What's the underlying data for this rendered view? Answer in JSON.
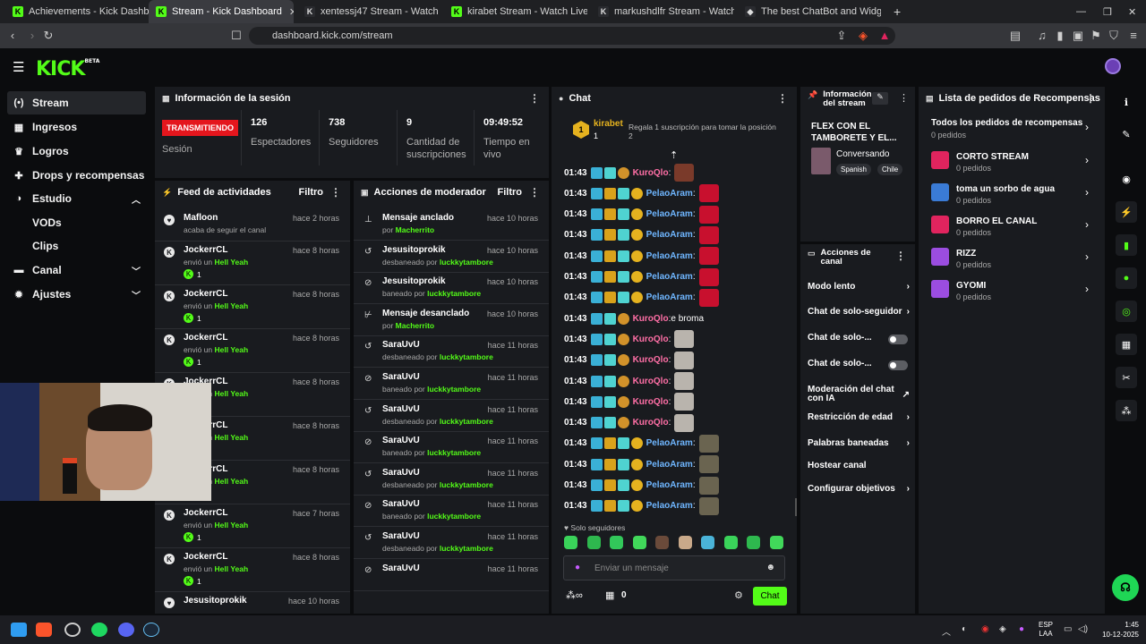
{
  "browser": {
    "tabs": [
      {
        "title": "Achievements - Kick Dashboard",
        "icon": "kick-icon"
      },
      {
        "title": "Stream - Kick Dashboard",
        "icon": "kick-icon"
      },
      {
        "title": "xentessj47 Stream - Watch Live o",
        "icon": "mute-icon"
      },
      {
        "title": "kirabet Stream - Watch Live on Ki",
        "icon": "kick-icon"
      },
      {
        "title": "markushdlfr Stream - Watch Live",
        "icon": "mute-icon"
      },
      {
        "title": "The best ChatBot and Widgets for Ki",
        "icon": "bot-icon"
      }
    ],
    "url": "dashboard.kick.com/stream",
    "shield_count": "9"
  },
  "brand": {
    "logo": "KICK",
    "beta": "BETA"
  },
  "sidebar": {
    "items": [
      {
        "label": "Stream",
        "icon": "stream-icon"
      },
      {
        "label": "Ingresos",
        "icon": "ingresos-icon"
      },
      {
        "label": "Logros",
        "icon": "trophy-icon"
      },
      {
        "label": "Drops y recompensas",
        "icon": "gift-icon"
      },
      {
        "label": "Estudio",
        "icon": "studio-icon",
        "chevron": "up"
      },
      {
        "label": "VODs"
      },
      {
        "label": "Clips"
      },
      {
        "label": "Canal",
        "icon": "channel-icon",
        "chevron": "down"
      },
      {
        "label": "Ajustes",
        "icon": "gear-icon",
        "chevron": "down"
      }
    ]
  },
  "session": {
    "title": "Información de la sesión",
    "badge": "TRANSMITIENDO",
    "badge_label": "Sesión",
    "stats": [
      {
        "value": "126",
        "label": "Espectadores"
      },
      {
        "value": "738",
        "label": "Seguidores"
      },
      {
        "value": "9",
        "label": "Cantidad de suscripciones"
      },
      {
        "value": "09:49:52",
        "label": "Tiempo en vivo"
      }
    ]
  },
  "feed": {
    "title": "Feed de actividades",
    "filter": "Filtro",
    "items": [
      {
        "name": "Mafloon",
        "time": "hace 2 horas",
        "sub": "acaba de seguir el canal",
        "type": "follow"
      },
      {
        "name": "JockerrCL",
        "time": "hace 8 horas",
        "sent": "envió un",
        "gift": "Hell Yeah",
        "count": "1",
        "type": "kick"
      },
      {
        "name": "JockerrCL",
        "time": "hace 8 horas",
        "sent": "envió un",
        "gift": "Hell Yeah",
        "count": "1",
        "type": "kick"
      },
      {
        "name": "JockerrCL",
        "time": "hace 8 horas",
        "sent": "envió un",
        "gift": "Hell Yeah",
        "count": "1",
        "type": "kick"
      },
      {
        "name": "JockerrCL",
        "time": "hace 8 horas",
        "sent": "envió un",
        "gift": "Hell Yeah",
        "count": "1",
        "type": "kick"
      },
      {
        "name": "JockerrCL",
        "time": "hace 8 horas",
        "sent": "envió un",
        "gift": "Hell Yeah",
        "count": "1",
        "type": "kick"
      },
      {
        "name": "JockerrCL",
        "time": "hace 8 horas",
        "sent": "envió un",
        "gift": "Hell Yeah",
        "count": "1",
        "type": "kick"
      },
      {
        "name": "JockerrCL",
        "time": "hace 7 horas",
        "sent": "envió un",
        "gift": "Hell Yeah",
        "count": "1",
        "type": "kick"
      },
      {
        "name": "JockerrCL",
        "time": "hace 8 horas",
        "sent": "envió un",
        "gift": "Hell Yeah",
        "count": "1",
        "type": "kick"
      },
      {
        "name": "Jesusitoprokik",
        "time": "hace 10 horas",
        "type": "follow"
      }
    ]
  },
  "mod": {
    "title": "Acciones de moderador",
    "filter": "Filtro",
    "items": [
      {
        "action": "Mensaje anclado",
        "time": "hace 10 horas",
        "pre": "por",
        "by": "Macherrito",
        "icon": "pin-icon"
      },
      {
        "action": "Jesusitoprokik",
        "time": "hace 10 horas",
        "pre": "desbaneado por",
        "by": "luckkytambore",
        "icon": "unban-icon"
      },
      {
        "action": "Jesusitoprokik",
        "time": "hace 10 horas",
        "pre": "baneado por",
        "by": "luckkytambore",
        "icon": "ban-icon"
      },
      {
        "action": "Mensaje desanclado",
        "time": "hace 10 horas",
        "pre": "por",
        "by": "Macherrito",
        "icon": "unpin-icon"
      },
      {
        "action": "SaraUvU",
        "time": "hace 11 horas",
        "pre": "desbaneado por",
        "by": "luckkytambore",
        "icon": "unban-icon"
      },
      {
        "action": "SaraUvU",
        "time": "hace 11 horas",
        "pre": "baneado por",
        "by": "luckkytambore",
        "icon": "ban-icon"
      },
      {
        "action": "SaraUvU",
        "time": "hace 11 horas",
        "pre": "desbaneado por",
        "by": "luckkytambore",
        "icon": "unban-icon"
      },
      {
        "action": "SaraUvU",
        "time": "hace 11 horas",
        "pre": "baneado por",
        "by": "luckkytambore",
        "icon": "ban-icon"
      },
      {
        "action": "SaraUvU",
        "time": "hace 11 horas",
        "pre": "desbaneado por",
        "by": "luckkytambore",
        "icon": "unban-icon"
      },
      {
        "action": "SaraUvU",
        "time": "hace 11 horas",
        "pre": "baneado por",
        "by": "luckkytambore",
        "icon": "ban-icon"
      },
      {
        "action": "SaraUvU",
        "time": "hace 11 horas",
        "pre": "desbaneado por",
        "by": "luckkytambore",
        "icon": "unban-icon"
      },
      {
        "action": "SaraUvU",
        "time": "hace 11 horas",
        "pre": "",
        "by": "",
        "icon": "ban-icon"
      }
    ]
  },
  "chat": {
    "title": "Chat",
    "pinned": {
      "user": "kirabet",
      "badge": "1",
      "text": "Regala 1 suscripción para tomar la posición 2"
    },
    "messages": [
      {
        "time": "01:43",
        "user": "KuroQlo",
        "color": "#ff6fa6",
        "text": "",
        "emote": "#7a3a2a"
      },
      {
        "time": "01:43",
        "user": "PelaoAram",
        "color": "#6fb6ff",
        "text": "",
        "emote": "#c8102e"
      },
      {
        "time": "01:43",
        "user": "PelaoAram",
        "color": "#6fb6ff",
        "text": "",
        "emote": "#c8102e"
      },
      {
        "time": "01:43",
        "user": "PelaoAram",
        "color": "#6fb6ff",
        "text": "",
        "emote": "#c8102e"
      },
      {
        "time": "01:43",
        "user": "PelaoAram",
        "color": "#6fb6ff",
        "text": "",
        "emote": "#c8102e"
      },
      {
        "time": "01:43",
        "user": "PelaoAram",
        "color": "#6fb6ff",
        "text": "",
        "emote": "#c8102e"
      },
      {
        "time": "01:43",
        "user": "PelaoAram",
        "color": "#6fb6ff",
        "text": "",
        "emote": "#c8102e"
      },
      {
        "time": "01:43",
        "user": "KuroQlo",
        "color": "#ff6fa6",
        "text": " e broma",
        "emote": ""
      },
      {
        "time": "01:43",
        "user": "KuroQlo",
        "color": "#ff6fa6",
        "text": "",
        "emote": "#b9b4ad"
      },
      {
        "time": "01:43",
        "user": "KuroQlo",
        "color": "#ff6fa6",
        "text": "",
        "emote": "#b9b4ad"
      },
      {
        "time": "01:43",
        "user": "KuroQlo",
        "color": "#ff6fa6",
        "text": "",
        "emote": "#b9b4ad"
      },
      {
        "time": "01:43",
        "user": "KuroQlo",
        "color": "#ff6fa6",
        "text": "",
        "emote": "#b9b4ad"
      },
      {
        "time": "01:43",
        "user": "KuroQlo",
        "color": "#ff6fa6",
        "text": "",
        "emote": "#b9b4ad"
      },
      {
        "time": "01:43",
        "user": "PelaoAram",
        "color": "#6fb6ff",
        "text": "",
        "emote": "#6a6450"
      },
      {
        "time": "01:43",
        "user": "PelaoAram",
        "color": "#6fb6ff",
        "text": "",
        "emote": "#6a6450"
      },
      {
        "time": "01:43",
        "user": "PelaoAram",
        "color": "#6fb6ff",
        "text": "",
        "emote": "#6a6450"
      },
      {
        "time": "01:43",
        "user": "PelaoAram",
        "color": "#6fb6ff",
        "text": "",
        "emote": "#6a6450"
      }
    ],
    "followers_only": "Solo seguidores",
    "placeholder": "Enviar un mensaje",
    "points": "0",
    "send": "Chat"
  },
  "stream_info": {
    "title": "Información del stream",
    "stream_title": "FLEX CON EL TAMBORETE Y EL...",
    "category": "Conversando",
    "tags": [
      "Spanish",
      "Chile"
    ]
  },
  "channel_actions": {
    "title": "Acciones de canal",
    "items": [
      {
        "label": "Modo lento",
        "control": "chevron"
      },
      {
        "label": "Chat de solo-seguidor",
        "control": "chevron"
      },
      {
        "label": "Chat de solo-...",
        "control": "toggle"
      },
      {
        "label": "Chat de solo-...",
        "control": "toggle"
      },
      {
        "label": "Moderación del chat con IA",
        "control": "external"
      },
      {
        "label": "Restricción de edad",
        "control": "chevron"
      },
      {
        "label": "Palabras baneadas",
        "control": "chevron"
      },
      {
        "label": "Hostear canal",
        "control": "none"
      },
      {
        "label": "Configurar objetivos",
        "control": "chevron"
      }
    ]
  },
  "rewards": {
    "title": "Lista de pedidos de Recompensas",
    "all": "Todos los pedidos de recompensas",
    "all_count": "0 pedidos",
    "items": [
      {
        "name": "CORTO STREAM",
        "count": "0 pedidos",
        "color": "#e0245e"
      },
      {
        "name": "toma un sorbo de agua",
        "count": "0 pedidos",
        "color": "#3a7bd5"
      },
      {
        "name": "BORRO EL CANAL",
        "count": "0 pedidos",
        "color": "#e0245e"
      },
      {
        "name": "RIZZ",
        "count": "0 pedidos",
        "color": "#9b4de0"
      },
      {
        "name": "GYOMI",
        "count": "0 pedidos",
        "color": "#9b4de0"
      }
    ]
  },
  "taskbar": {
    "lang1": "ESP",
    "lang2": "LAA",
    "time": "1:45",
    "date": "10-12-2025"
  },
  "colors": {
    "accent": "#53fc18",
    "live": "#e4161d"
  }
}
